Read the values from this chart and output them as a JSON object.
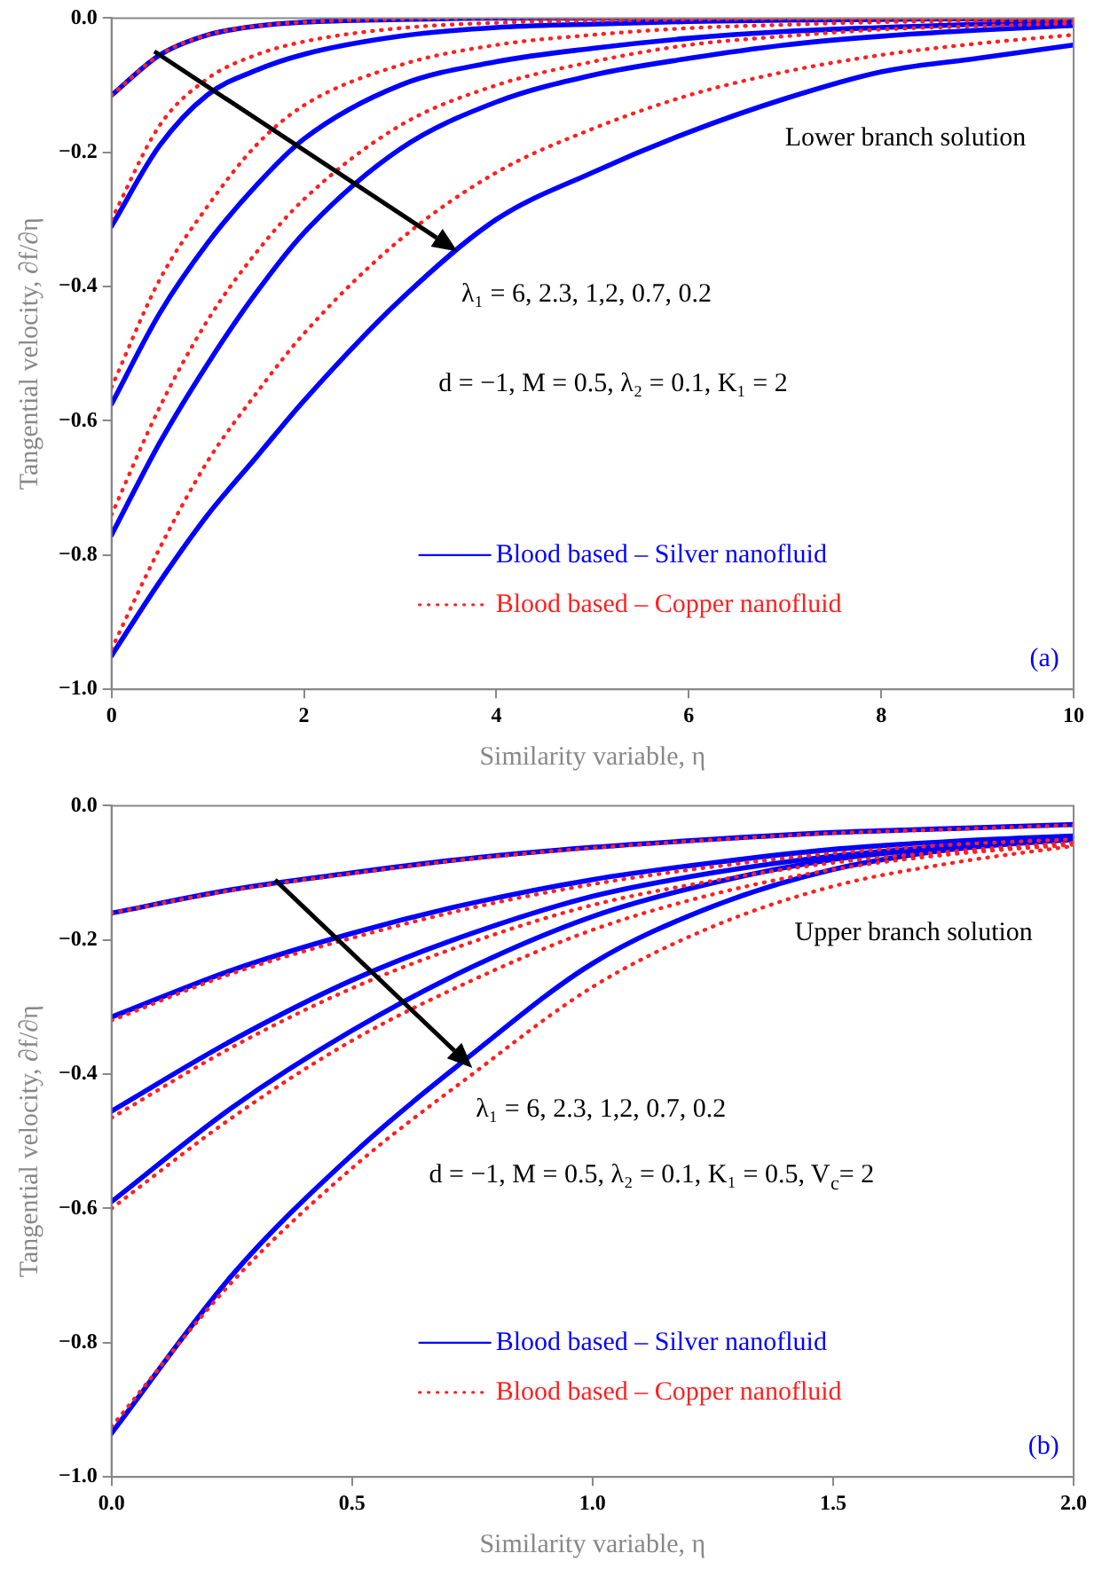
{
  "chart_data": [
    {
      "type": "line",
      "xlabel": "Similarity variable, η",
      "ylabel": "Tangential velocity, ∂f/∂η",
      "legend": "bottom",
      "marker": "none",
      "annotations": [
        "Lower branch solution",
        {
          "text": "λ₁ = 6, 2.3, 1,2, 0.7, 0.2",
          "x": 3.6,
          "y": -0.348
        },
        "d = −1, M = 0.5, λ₂ = 0.1, K₁ = 2",
        "(a)"
      ],
      "x": [
        0,
        0.5,
        1,
        1.5,
        2,
        3,
        4,
        5,
        6,
        7,
        8,
        9,
        10
      ],
      "xlim": [
        0,
        10
      ],
      "xticks": [
        0,
        2,
        4,
        6,
        8,
        10
      ],
      "ylim": [
        -1,
        0
      ],
      "yticks": [
        {
          "value": -1,
          "label": "−1.0"
        },
        {
          "value": -0.8,
          "label": "−0.8"
        },
        {
          "value": -0.6,
          "label": "−0.6"
        },
        {
          "value": -0.4,
          "label": "−0.4"
        },
        {
          "value": -0.2,
          "label": "−0.2"
        },
        {
          "value": 0,
          "label": "0.0"
        }
      ],
      "series": [
        {
          "color": "#ff2020",
          "line_style": "dotted",
          "values": [
            -0.115,
            -0.055,
            -0.025,
            -0.012,
            -0.006,
            -0.002,
            0,
            0,
            0,
            0,
            0,
            0,
            0
          ]
        },
        {
          "color": "#ff2020",
          "line_style": "dotted",
          "values": [
            -0.3,
            -0.16,
            -0.09,
            -0.055,
            -0.035,
            -0.015,
            -0.007,
            -0.004,
            -0.002,
            -0.001,
            -0.001,
            0,
            0
          ]
        },
        {
          "color": "#ff2020",
          "line_style": "dotted",
          "values": [
            -0.55,
            -0.39,
            -0.28,
            -0.19,
            -0.13,
            -0.07,
            -0.04,
            -0.025,
            -0.015,
            -0.01,
            -0.006,
            -0.004,
            -0.003
          ]
        },
        {
          "color": "#ff2020",
          "line_style": "dotted",
          "values": [
            -0.74,
            -0.58,
            -0.45,
            -0.35,
            -0.27,
            -0.16,
            -0.1,
            -0.065,
            -0.04,
            -0.027,
            -0.017,
            -0.012,
            -0.008
          ]
        },
        {
          "name": "Blood based – Copper nanofluid",
          "color": "#ff2020",
          "line_style": "dotted",
          "values": [
            -0.94,
            -0.79,
            -0.66,
            -0.56,
            -0.47,
            -0.33,
            -0.23,
            -0.165,
            -0.115,
            -0.08,
            -0.055,
            -0.038,
            -0.025
          ]
        },
        {
          "name": "Blood based – Silver nanofluid",
          "color": "#0000ff",
          "line_style": "solid",
          "values": [
            -0.115,
            -0.055,
            -0.025,
            -0.012,
            -0.006,
            -0.002,
            0,
            0,
            0,
            0,
            0,
            0,
            0
          ]
        },
        {
          "color": "#0000ff",
          "line_style": "solid",
          "values": [
            -0.31,
            -0.19,
            -0.114,
            -0.078,
            -0.054,
            -0.027,
            -0.014,
            -0.009,
            -0.005,
            -0.003,
            -0.002,
            -0.001,
            -0.001
          ]
        },
        {
          "color": "#0000ff",
          "line_style": "solid",
          "values": [
            -0.575,
            -0.44,
            -0.335,
            -0.25,
            -0.18,
            -0.1,
            -0.065,
            -0.045,
            -0.03,
            -0.02,
            -0.014,
            -0.009,
            -0.006
          ]
        },
        {
          "color": "#0000ff",
          "line_style": "solid",
          "values": [
            -0.77,
            -0.633,
            -0.515,
            -0.41,
            -0.32,
            -0.195,
            -0.125,
            -0.085,
            -0.06,
            -0.04,
            -0.027,
            -0.018,
            -0.011
          ]
        },
        {
          "color": "#0000ff",
          "line_style": "solid",
          "values": [
            -0.95,
            -0.84,
            -0.74,
            -0.655,
            -0.57,
            -0.42,
            -0.3,
            -0.23,
            -0.17,
            -0.12,
            -0.08,
            -0.06,
            -0.04
          ]
        }
      ]
    },
    {
      "type": "line",
      "xlabel": "Similarity variable, η",
      "ylabel": "Tangential velocity, ∂f/∂η",
      "legend": "bottom",
      "marker": "none",
      "annotations": [
        "Upper branch solution",
        {
          "text": "λ₁ = 6, 2.3, 1,2, 0.7, 0.2",
          "x": 0.75,
          "y": -0.39
        },
        "d = −1, M = 0.5, λ₂ = 0.1, K₁ = 0.5, V$_{c}$= 2",
        "(b)"
      ],
      "x": [
        0,
        0.25,
        0.5,
        0.75,
        1,
        1.25,
        1.5,
        1.75,
        2
      ],
      "xlim": [
        0,
        2
      ],
      "xticks": [
        {
          "value": 0,
          "label": "0.0"
        },
        {
          "value": 0.5,
          "label": "0.5"
        },
        {
          "value": 1,
          "label": "1.0"
        },
        {
          "value": 1.5,
          "label": "1.5"
        },
        {
          "value": 2,
          "label": "2.0"
        }
      ],
      "ylim": [
        -1,
        0
      ],
      "yticks": [
        {
          "value": -1,
          "label": "−1.0"
        },
        {
          "value": -0.8,
          "label": "−0.8"
        },
        {
          "value": -0.6,
          "label": "−0.6"
        },
        {
          "value": -0.4,
          "label": "−0.4"
        },
        {
          "value": -0.2,
          "label": "−0.2"
        },
        {
          "value": 0,
          "label": "0.0"
        }
      ],
      "series": [
        {
          "color": "#ff2020",
          "line_style": "dotted",
          "values": [
            -0.16,
            -0.126,
            -0.101,
            -0.079,
            -0.063,
            -0.051,
            -0.041,
            -0.035,
            -0.029
          ]
        },
        {
          "color": "#ff2020",
          "line_style": "dotted",
          "values": [
            -0.32,
            -0.25,
            -0.197,
            -0.152,
            -0.117,
            -0.091,
            -0.071,
            -0.058,
            -0.05
          ]
        },
        {
          "color": "#ff2020",
          "line_style": "dotted",
          "values": [
            -0.465,
            -0.36,
            -0.272,
            -0.203,
            -0.148,
            -0.112,
            -0.085,
            -0.068,
            -0.055
          ]
        },
        {
          "color": "#ff2020",
          "line_style": "dotted",
          "values": [
            -0.6,
            -0.465,
            -0.35,
            -0.26,
            -0.185,
            -0.132,
            -0.095,
            -0.072,
            -0.058
          ]
        },
        {
          "name": "Blood based – Copper nanofluid",
          "color": "#ff2020",
          "line_style": "dotted",
          "values": [
            -0.925,
            -0.71,
            -0.54,
            -0.4,
            -0.27,
            -0.18,
            -0.12,
            -0.085,
            -0.06
          ]
        },
        {
          "name": "Blood based – Silver nanofluid",
          "color": "#0000ff",
          "line_style": "solid",
          "values": [
            -0.16,
            -0.125,
            -0.1,
            -0.078,
            -0.062,
            -0.05,
            -0.04,
            -0.034,
            -0.028
          ]
        },
        {
          "color": "#0000ff",
          "line_style": "solid",
          "values": [
            -0.315,
            -0.245,
            -0.19,
            -0.145,
            -0.11,
            -0.085,
            -0.065,
            -0.053,
            -0.045
          ]
        },
        {
          "color": "#0000ff",
          "line_style": "solid",
          "values": [
            -0.455,
            -0.35,
            -0.26,
            -0.19,
            -0.135,
            -0.1,
            -0.075,
            -0.06,
            -0.05
          ]
        },
        {
          "color": "#0000ff",
          "line_style": "solid",
          "values": [
            -0.59,
            -0.45,
            -0.335,
            -0.24,
            -0.165,
            -0.115,
            -0.08,
            -0.062,
            -0.05
          ]
        },
        {
          "color": "#0000ff",
          "line_style": "solid",
          "values": [
            -0.935,
            -0.7,
            -0.52,
            -0.37,
            -0.235,
            -0.15,
            -0.095,
            -0.065,
            -0.05
          ]
        }
      ]
    }
  ]
}
